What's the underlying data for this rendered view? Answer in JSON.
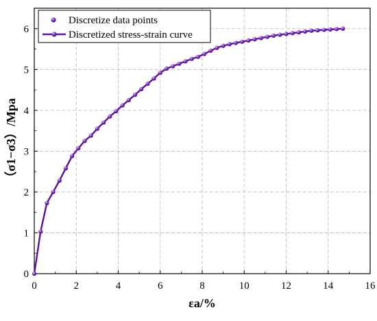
{
  "chart_data": {
    "type": "line",
    "title": "",
    "xlabel": "εa/%",
    "ylabel": "（σ1−σ3）/Mpa",
    "xlim": [
      0,
      16
    ],
    "ylim": [
      0,
      6.5
    ],
    "x_ticks": [
      "0",
      "2",
      "4",
      "6",
      "8",
      "10",
      "12",
      "14",
      "16"
    ],
    "y_ticks": [
      "0",
      "1",
      "2",
      "3",
      "4",
      "5",
      "6"
    ],
    "grid": true,
    "legend_position": "top-left",
    "color": "#5a0fa0",
    "series": [
      {
        "name": "Discretize data points",
        "style": "markers",
        "x": [
          0,
          0.3,
          0.6,
          0.9,
          1.2,
          1.5,
          1.8,
          2.1,
          2.4,
          2.7,
          3.0,
          3.3,
          3.6,
          3.9,
          4.2,
          4.5,
          4.8,
          5.1,
          5.4,
          5.7,
          6.0,
          6.3,
          6.6,
          6.9,
          7.2,
          7.5,
          7.8,
          8.1,
          8.4,
          8.7,
          9.0,
          9.3,
          9.6,
          9.9,
          10.2,
          10.5,
          10.8,
          11.1,
          11.4,
          11.7,
          12.0,
          12.3,
          12.6,
          12.9,
          13.2,
          13.5,
          13.8,
          14.1,
          14.4,
          14.7
        ],
        "y": [
          0,
          1.03,
          1.73,
          2.0,
          2.28,
          2.58,
          2.88,
          3.07,
          3.25,
          3.38,
          3.55,
          3.7,
          3.85,
          3.98,
          4.12,
          4.25,
          4.38,
          4.52,
          4.65,
          4.78,
          4.92,
          5.02,
          5.08,
          5.14,
          5.2,
          5.26,
          5.31,
          5.38,
          5.46,
          5.53,
          5.58,
          5.62,
          5.65,
          5.68,
          5.71,
          5.74,
          5.77,
          5.8,
          5.83,
          5.85,
          5.87,
          5.89,
          5.91,
          5.93,
          5.95,
          5.96,
          5.97,
          5.98,
          5.99,
          6.0
        ]
      },
      {
        "name": "Discretized stress-strain curve",
        "style": "line+markers",
        "x": [
          0,
          0.3,
          0.6,
          0.9,
          1.2,
          1.5,
          1.8,
          2.1,
          2.4,
          2.7,
          3.0,
          3.3,
          3.6,
          3.9,
          4.2,
          4.5,
          4.8,
          5.1,
          5.4,
          5.7,
          6.0,
          6.3,
          6.6,
          6.9,
          7.2,
          7.5,
          7.8,
          8.1,
          8.4,
          8.7,
          9.0,
          9.3,
          9.6,
          9.9,
          10.2,
          10.5,
          10.8,
          11.1,
          11.4,
          11.7,
          12.0,
          12.3,
          12.6,
          12.9,
          13.2,
          13.5,
          13.8,
          14.1,
          14.4,
          14.7
        ],
        "y": [
          0,
          1.03,
          1.73,
          2.0,
          2.28,
          2.58,
          2.88,
          3.07,
          3.25,
          3.38,
          3.55,
          3.7,
          3.85,
          3.98,
          4.12,
          4.25,
          4.38,
          4.52,
          4.65,
          4.78,
          4.92,
          5.02,
          5.08,
          5.14,
          5.2,
          5.26,
          5.31,
          5.38,
          5.46,
          5.53,
          5.58,
          5.62,
          5.65,
          5.68,
          5.71,
          5.74,
          5.77,
          5.8,
          5.83,
          5.85,
          5.87,
          5.89,
          5.91,
          5.93,
          5.95,
          5.96,
          5.97,
          5.98,
          5.99,
          6.0
        ]
      }
    ]
  }
}
